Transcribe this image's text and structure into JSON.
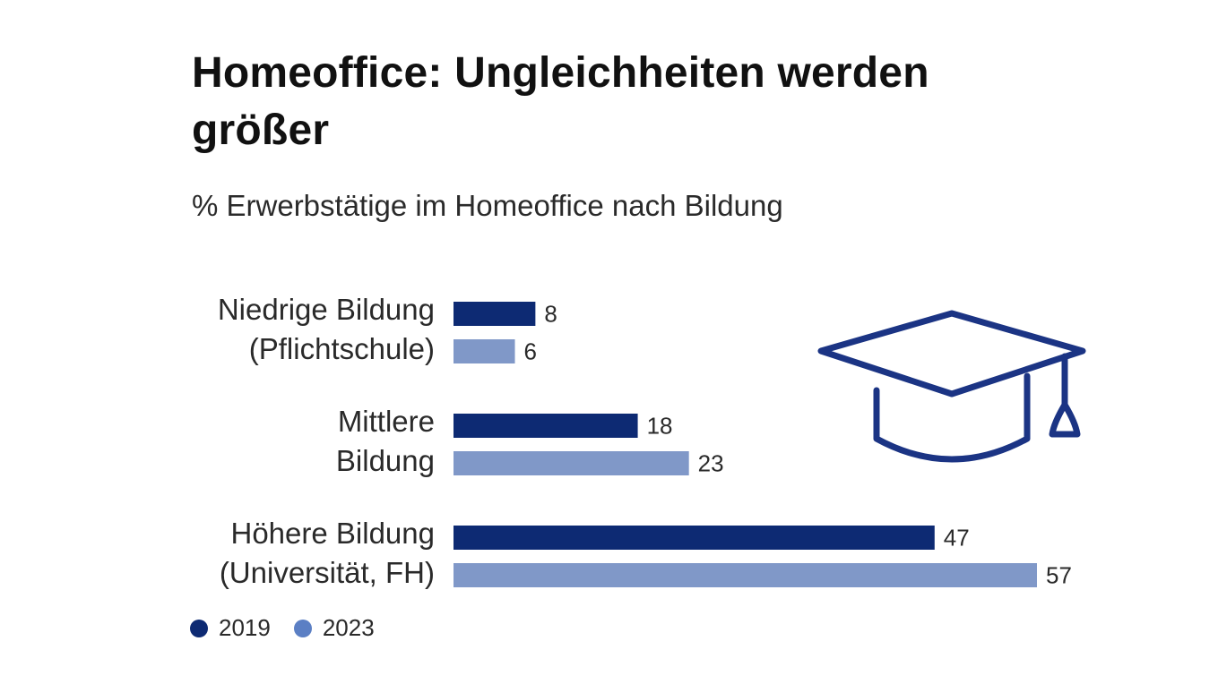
{
  "colors": {
    "series_2019": "#0d2a73",
    "series_2023": "#8098c8",
    "legend_2023": "#5b7fc4",
    "icon": "#1b3484"
  },
  "icon": "graduation-cap-icon",
  "chart_data": {
    "type": "bar",
    "orientation": "horizontal",
    "title": "Homeoffice: Ungleichheiten werden größer",
    "subtitle": "% Erwerbstätige im Homeoffice nach Bildung",
    "categories": [
      [
        "Niedrige Bildung",
        "(Pflichtschule)"
      ],
      [
        "Mittlere",
        "Bildung"
      ],
      [
        "Höhere Bildung",
        "(Universität, FH)"
      ]
    ],
    "series": [
      {
        "name": "2019",
        "values": [
          8,
          18,
          47
        ]
      },
      {
        "name": "2023",
        "values": [
          6,
          23,
          57
        ]
      }
    ],
    "data_labels": true,
    "legend_position": "bottom-left",
    "grid": false
  }
}
